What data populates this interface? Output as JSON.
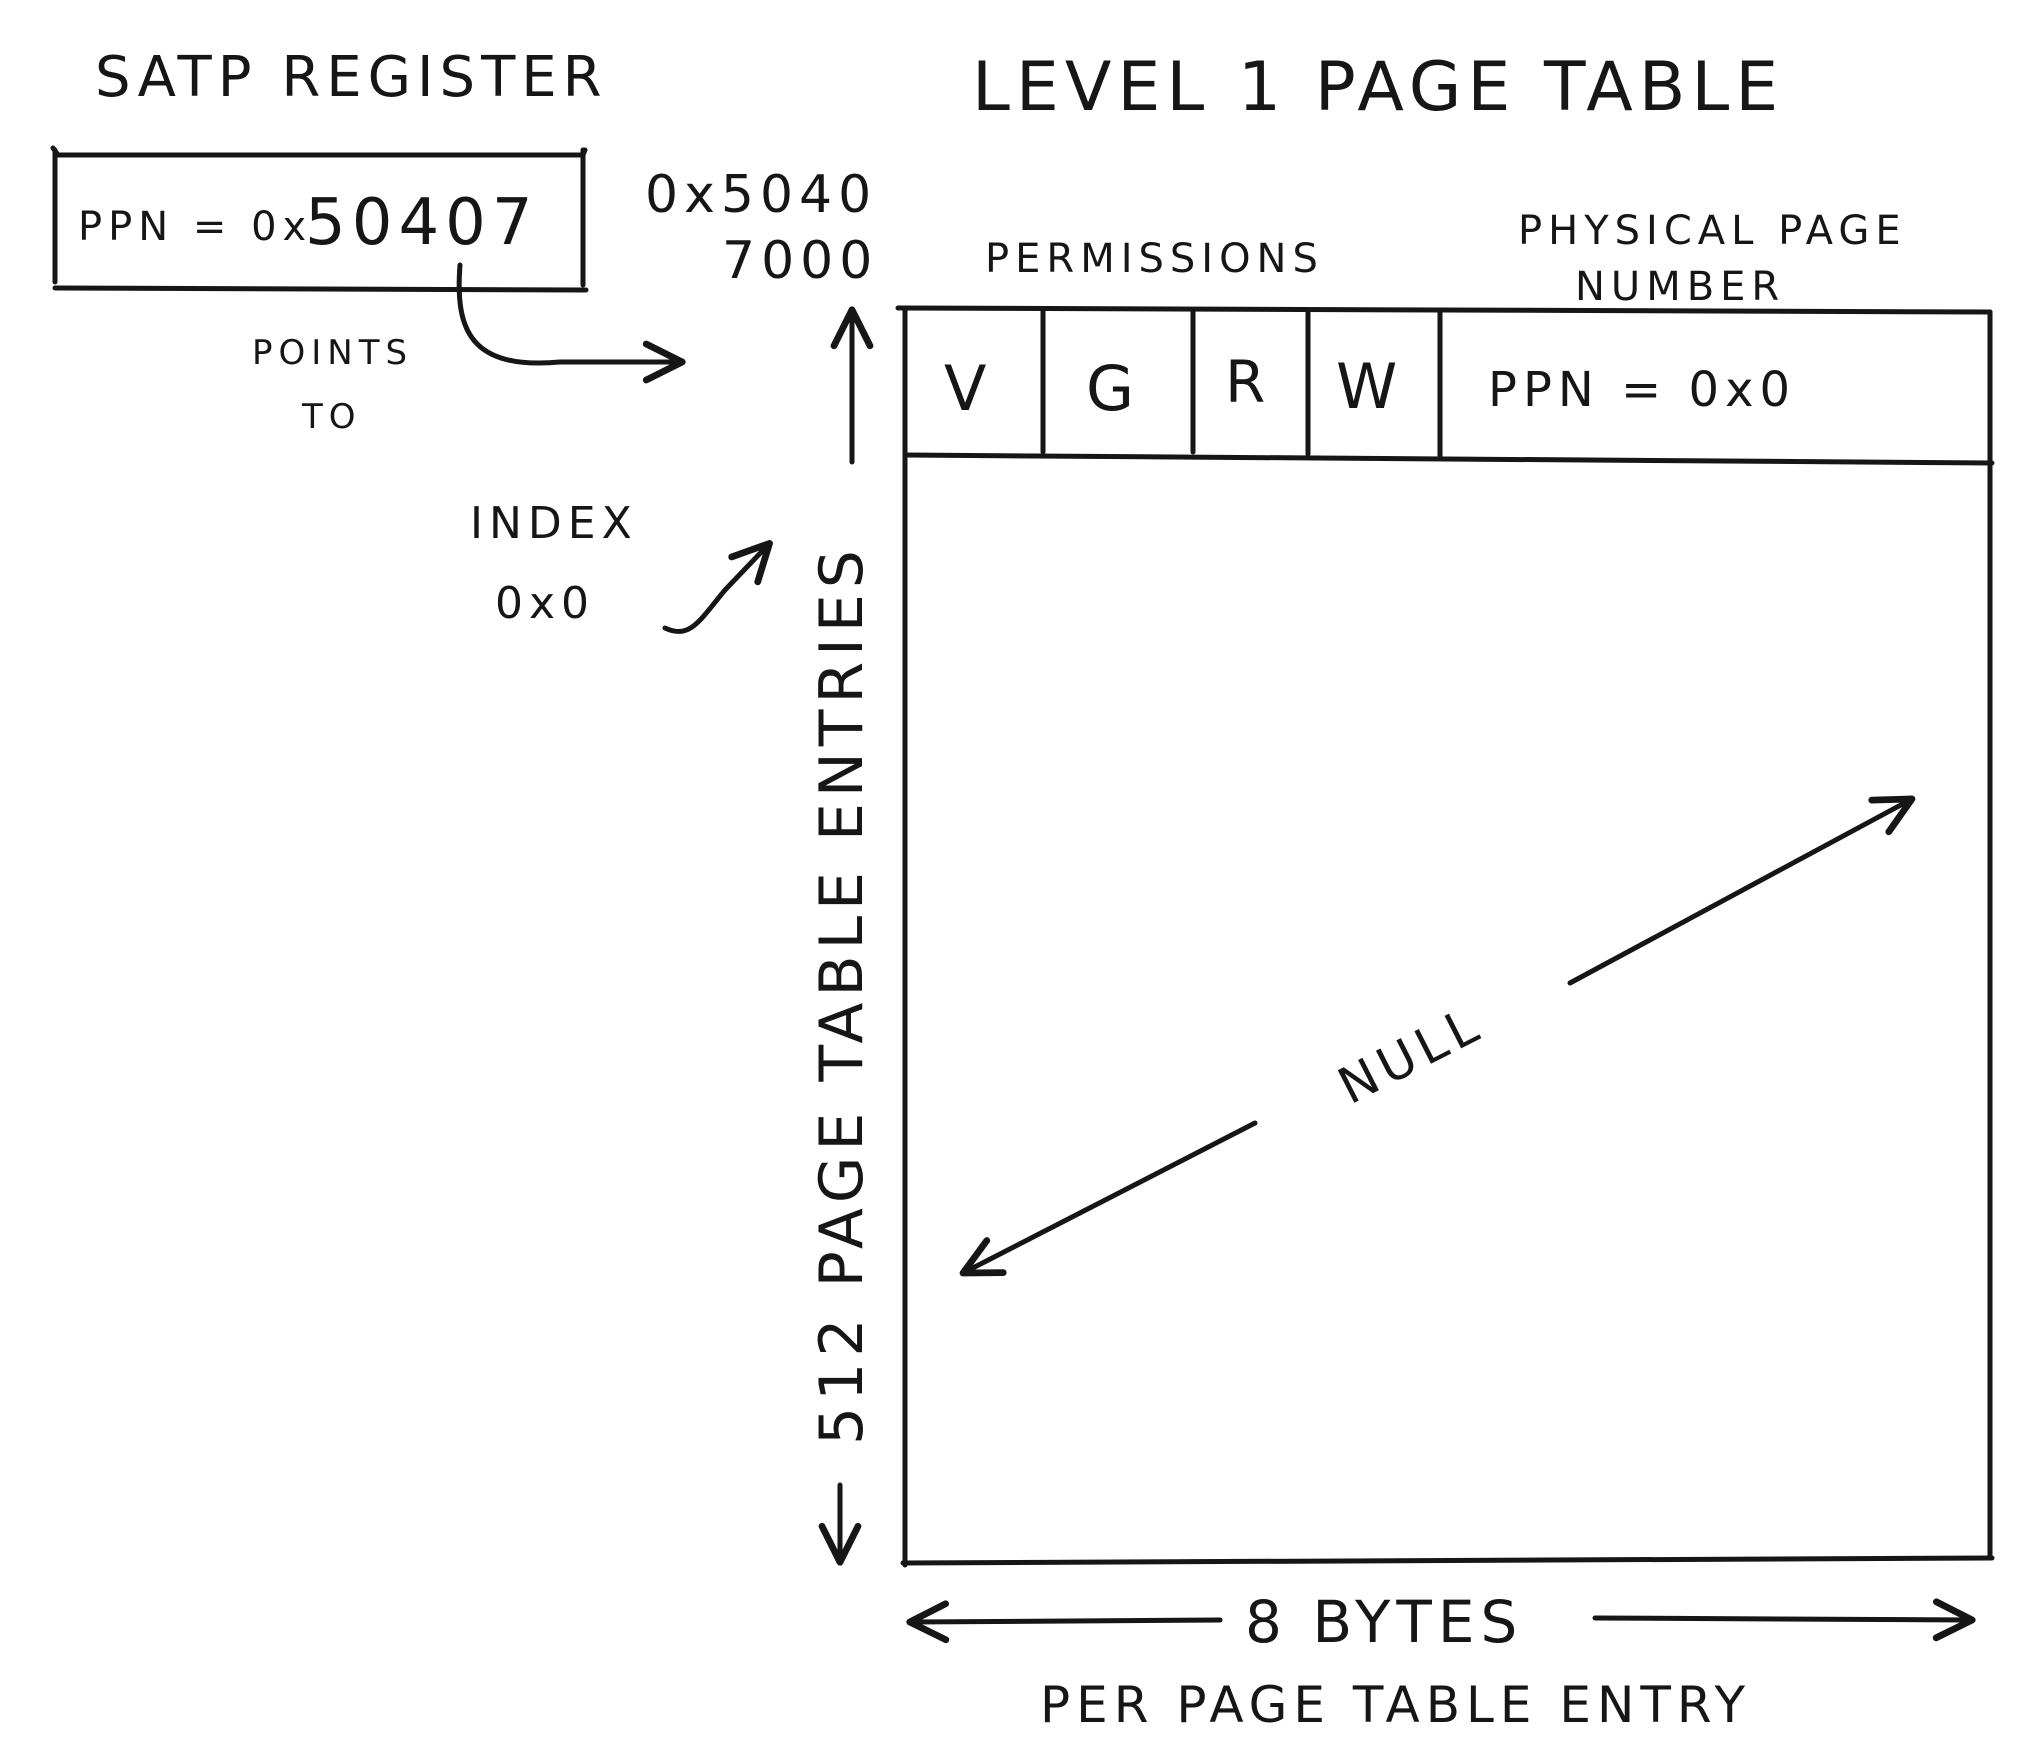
{
  "satp": {
    "title": "SATP REGISTER",
    "ppn_label": "PPN = 0x",
    "ppn_value": "50407",
    "points_to_line1": "POINTS",
    "points_to_line2": "TO"
  },
  "table": {
    "title": "LEVEL 1 PAGE TABLE",
    "address_line1": "0x5040",
    "address_line2": "7000",
    "permissions_header": "PERMISSIONS",
    "ppn_header_line1": "PHYSICAL PAGE",
    "ppn_header_line2": "NUMBER",
    "entry": {
      "v": "V",
      "g": "G",
      "r": "R",
      "w": "W",
      "ppn": "PPN = 0x0"
    },
    "index_line1": "INDEX",
    "index_line2": "0x0",
    "null_label": "NULL",
    "entries_label": "512 PAGE TABLE ENTRIES",
    "width_label": "8 BYTES",
    "width_label_line2": "PER PAGE TABLE ENTRY"
  }
}
